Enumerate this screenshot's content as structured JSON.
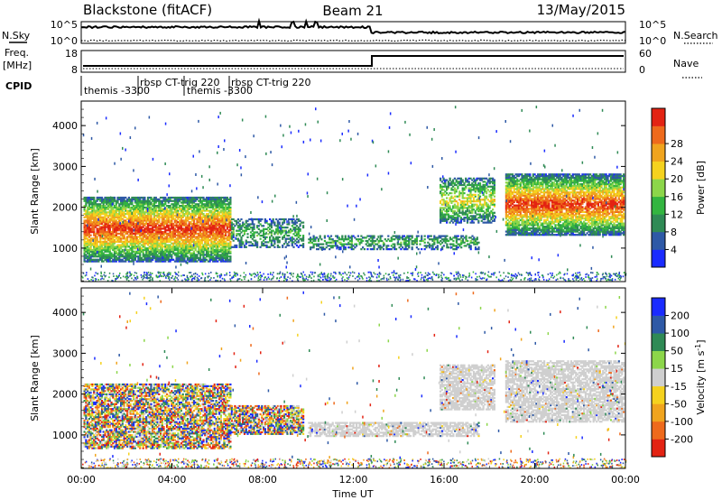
{
  "header": {
    "station": "Blackstone (fitACF)",
    "beam": "Beam 21",
    "date": "13/May/2015"
  },
  "top_panels": {
    "sky_label": "N.Sky",
    "search_label": "N.Search",
    "sky_ticks": [
      "10^5",
      "10^0"
    ],
    "search_ticks": [
      "10^5",
      "10^0"
    ],
    "freq_label_1": "Freq.",
    "freq_label_2": "[MHz]",
    "freq_ticks": [
      "18",
      "8"
    ],
    "nave_label": "Nave",
    "nave_ticks": [
      "60",
      "0"
    ],
    "cpid_label": "CPID",
    "cpid_entries": [
      {
        "text": "themis -3300",
        "t": 0.0
      },
      {
        "text": "rbsp CT-trig 220",
        "t": 2.3
      },
      {
        "text": "themis -3300",
        "t": 4.45
      },
      {
        "text": "rbsp CT-trig 220",
        "t": 6.4
      }
    ]
  },
  "chart_data": [
    {
      "type": "heatmap",
      "title": "",
      "xlabel": "",
      "ylabel": "Slant Range [km]",
      "xlim_hours": [
        0,
        24
      ],
      "ylim_km": [
        180,
        4600
      ],
      "y_ticks": [
        1000,
        2000,
        3000,
        4000
      ],
      "colorbar": {
        "label": "Power [dB]",
        "range": [
          0,
          32
        ],
        "ticks": [
          4,
          8,
          12,
          16,
          20,
          24,
          28
        ],
        "colors": [
          "#1a2bff",
          "#2e59a6",
          "#2f8a55",
          "#33b540",
          "#8cd64a",
          "#f5d21e",
          "#f0a41e",
          "#ee6a1c",
          "#e32313"
        ]
      },
      "echo_regions": [
        {
          "t0": 0.1,
          "t1": 6.6,
          "r0": 650,
          "r1": 2250,
          "level": "high"
        },
        {
          "t0": 6.6,
          "t1": 9.8,
          "r0": 1000,
          "r1": 1700,
          "level": "low"
        },
        {
          "t0": 10.0,
          "t1": 17.5,
          "r0": 950,
          "r1": 1300,
          "level": "low"
        },
        {
          "t0": 15.8,
          "t1": 18.2,
          "r0": 1600,
          "r1": 2700,
          "level": "medium"
        },
        {
          "t0": 18.7,
          "t1": 23.9,
          "r0": 1300,
          "r1": 2800,
          "level": "high"
        }
      ]
    },
    {
      "type": "heatmap",
      "title": "",
      "xlabel": "Time UT",
      "ylabel": "Slant Range [km]",
      "xlim_hours": [
        0,
        24
      ],
      "ylim_km": [
        180,
        4600
      ],
      "y_ticks": [
        1000,
        2000,
        3000,
        4000
      ],
      "x_ticks": [
        "00:00",
        "04:00",
        "08:00",
        "12:00",
        "16:00",
        "20:00",
        "00:00"
      ],
      "colorbar": {
        "label": "Velocity [m s-1]",
        "label_main": "Velocity [m s",
        "label_sup": "-1",
        "label_end": "]",
        "ticks": [
          "200",
          "100",
          "50",
          "15",
          "-15",
          "-50",
          "-100",
          "-200"
        ],
        "colors": [
          "#1a2bff",
          "#2e59a6",
          "#2f8a55",
          "#8cd64a",
          "#cfcfcf",
          "#f5d21e",
          "#f0a41e",
          "#ee6a1c",
          "#e32313"
        ]
      },
      "echo_regions": [
        {
          "t0": 0.1,
          "t1": 6.6,
          "r0": 650,
          "r1": 2250,
          "level": "mixed"
        },
        {
          "t0": 6.6,
          "t1": 9.8,
          "r0": 1000,
          "r1": 1700,
          "level": "mixed"
        },
        {
          "t0": 10.0,
          "t1": 17.5,
          "r0": 950,
          "r1": 1300,
          "level": "gray"
        },
        {
          "t0": 15.8,
          "t1": 18.2,
          "r0": 1600,
          "r1": 2700,
          "level": "gray"
        },
        {
          "t0": 18.7,
          "t1": 23.9,
          "r0": 1300,
          "r1": 2800,
          "level": "gray"
        }
      ]
    }
  ]
}
